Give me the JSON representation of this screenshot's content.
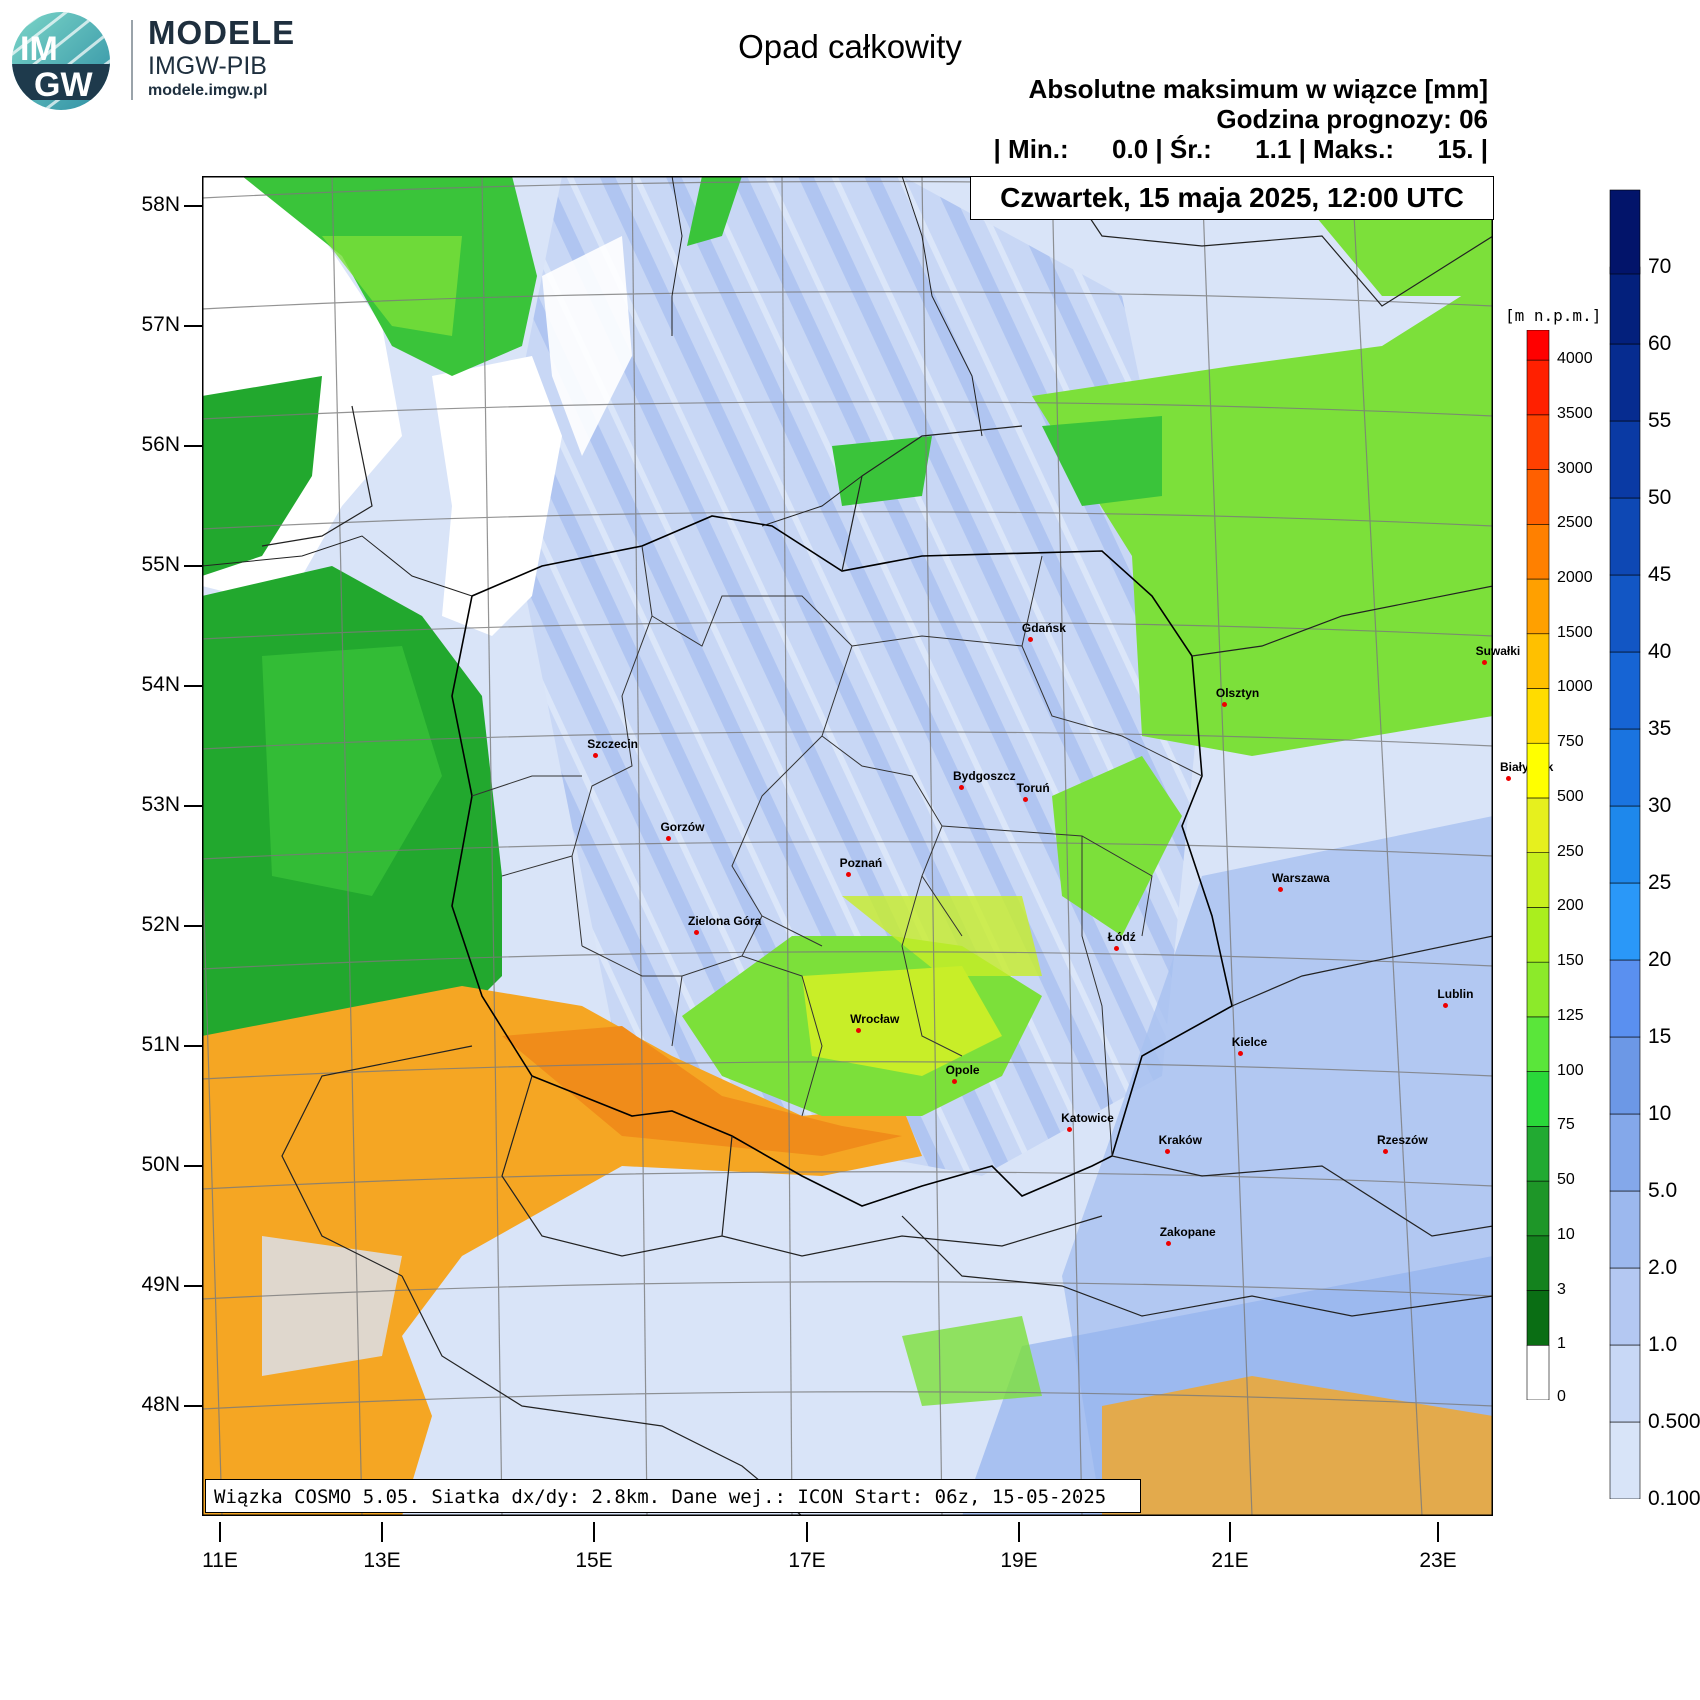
{
  "branding": {
    "title": "MODELE",
    "subtitle": "IMGW-PIB",
    "url": "modele.imgw.pl",
    "logo_text_top": "IM",
    "logo_text_bottom": "GW"
  },
  "header": {
    "title": "Opad całkowity",
    "line1": "Absolutne maksimum w wiązce [mm]",
    "line2": "Godzina prognozy: 06",
    "stats": {
      "min_label": "| Min.:",
      "min": "0.0",
      "avg_label": "| Śr.:",
      "avg": "1.1",
      "max_label": "| Maks.:",
      "max": "15.",
      "end": "|"
    },
    "date": "Czwartek, 15 maja 2025, 12:00 UTC"
  },
  "footer": "Wiązka COSMO 5.05. Siatka dx/dy: 2.8km. Dane wej.: ICON Start: 06z, 15-05-2025",
  "axes": {
    "lat": [
      "58N",
      "57N",
      "56N",
      "55N",
      "54N",
      "53N",
      "52N",
      "51N",
      "50N",
      "49N",
      "48N"
    ],
    "lon": [
      "11E",
      "13E",
      "15E",
      "17E",
      "19E",
      "21E",
      "23E"
    ]
  },
  "cities": [
    {
      "name": "Gdańsk",
      "lon": 18.65,
      "lat": 54.35
    },
    {
      "name": "Olsztyn",
      "lon": 20.48,
      "lat": 53.78
    },
    {
      "name": "Suwałki",
      "lon": 22.93,
      "lat": 54.1
    },
    {
      "name": "Białystok",
      "lon": 23.16,
      "lat": 53.13
    },
    {
      "name": "Szczecin",
      "lon": 14.55,
      "lat": 53.43
    },
    {
      "name": "Bydgoszcz",
      "lon": 18.0,
      "lat": 53.12
    },
    {
      "name": "Toruń",
      "lon": 18.6,
      "lat": 53.01
    },
    {
      "name": "Gorzów",
      "lon": 15.24,
      "lat": 52.73
    },
    {
      "name": "Poznań",
      "lon": 16.93,
      "lat": 52.41
    },
    {
      "name": "Warszawa",
      "lon": 21.01,
      "lat": 52.23
    },
    {
      "name": "Zielona Góra",
      "lon": 15.5,
      "lat": 51.94
    },
    {
      "name": "Łódź",
      "lon": 19.46,
      "lat": 51.76
    },
    {
      "name": "Lublin",
      "lon": 22.57,
      "lat": 51.25
    },
    {
      "name": "Wrocław",
      "lon": 17.03,
      "lat": 51.11
    },
    {
      "name": "Kielce",
      "lon": 20.63,
      "lat": 50.87
    },
    {
      "name": "Opole",
      "lon": 17.93,
      "lat": 50.67
    },
    {
      "name": "Rzeszów",
      "lon": 22.0,
      "lat": 50.04
    },
    {
      "name": "Katowice",
      "lon": 19.02,
      "lat": 50.26
    },
    {
      "name": "Kraków",
      "lon": 19.94,
      "lat": 50.06
    },
    {
      "name": "Zakopane",
      "lon": 19.95,
      "lat": 49.3
    }
  ],
  "terrain_legend": {
    "unit": "[m n.p.m.]",
    "levels": [
      "0",
      "1",
      "3",
      "10",
      "50",
      "75",
      "100",
      "125",
      "150",
      "200",
      "250",
      "500",
      "750",
      "1000",
      "1500",
      "2000",
      "2500",
      "3000",
      "3500",
      "4000"
    ],
    "colors": [
      "#ffffff",
      "#0a6e14",
      "#14821e",
      "#1e9628",
      "#22aa32",
      "#2ad83a",
      "#5ae63a",
      "#8cea2a",
      "#aaee1e",
      "#c8f01e",
      "#e6f01e",
      "#ffff00",
      "#ffdc00",
      "#ffc000",
      "#ffa000",
      "#ff8000",
      "#ff6000",
      "#ff4000",
      "#ff2000",
      "#ff0000"
    ]
  },
  "precip_legend": {
    "levels": [
      "0.100",
      "0.500",
      "1.0",
      "2.0",
      "5.0",
      "10",
      "15",
      "20",
      "25",
      "30",
      "35",
      "40",
      "45",
      "50",
      "55",
      "60",
      "70"
    ],
    "colors": [
      "#d8e4f8",
      "#c8d8f6",
      "#b4c8f2",
      "#9cb8ee",
      "#84a8ea",
      "#6c98e6",
      "#5a90f0",
      "#2a98f8",
      "#1e88ec",
      "#1a74e0",
      "#1664d4",
      "#1256c4",
      "#0e48b4",
      "#0a3aa4",
      "#062c90",
      "#03207c",
      "#02146a"
    ]
  },
  "map_colors": {
    "sea": "#ffffff",
    "precip_light": "#dae5f8",
    "precip_mid": "#b3c8f2",
    "precip_heavy": "#8daeec",
    "green_dark": "#22a82e",
    "green": "#3ac43a",
    "green_light": "#7ce03a",
    "yellow_green": "#c8ee28",
    "orange": "#f5a623",
    "orange_dark": "#f08c1a"
  }
}
